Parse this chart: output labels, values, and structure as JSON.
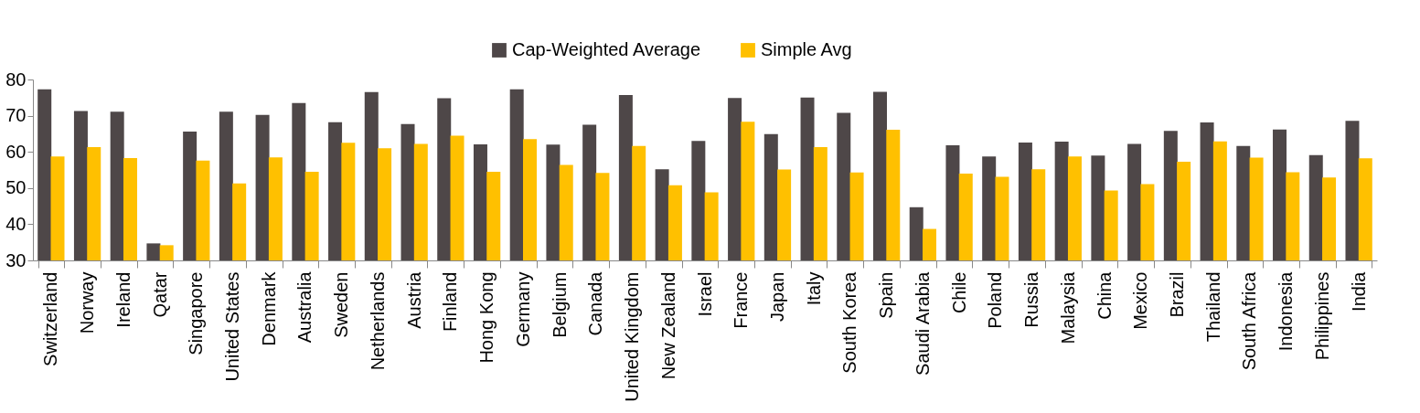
{
  "chart_data": {
    "type": "bar",
    "categories": [
      "Switzerland",
      "Norway",
      "Ireland",
      "Qatar",
      "Singapore",
      "United States",
      "Denmark",
      "Australia",
      "Sweden",
      "Netherlands",
      "Austria",
      "Finland",
      "Hong Kong",
      "Germany",
      "Belgium",
      "Canada",
      "United Kingdom",
      "New Zealand",
      "Israel",
      "France",
      "Japan",
      "Italy",
      "South Korea",
      "Spain",
      "Saudi Arabia",
      "Chile",
      "Poland",
      "Russia",
      "Malaysia",
      "China",
      "Mexico",
      "Brazil",
      "Thailand",
      "South Africa",
      "Indonesia",
      "Philippines",
      "India"
    ],
    "series": [
      {
        "name": "Cap-Weighted Average",
        "color": "#4e4748",
        "values": [
          77.3,
          71.3,
          71.1,
          34.7,
          65.6,
          71.1,
          70.2,
          73.5,
          68.2,
          76.5,
          67.7,
          74.8,
          62.1,
          77.3,
          62.0,
          67.5,
          75.7,
          55.2,
          63.0,
          74.9,
          64.9,
          75.0,
          70.8,
          76.6,
          44.7,
          61.8,
          58.7,
          62.6,
          62.8,
          59.0,
          62.2,
          65.8,
          68.1,
          61.6,
          66.2,
          59.1,
          68.6
        ]
      },
      {
        "name": "Simple Avg",
        "color": "#ffc000",
        "values": [
          58.7,
          61.3,
          58.3,
          34.2,
          57.6,
          51.3,
          58.5,
          54.5,
          62.5,
          61.0,
          62.2,
          64.5,
          54.5,
          63.5,
          56.4,
          54.2,
          61.6,
          50.8,
          48.8,
          68.3,
          55.1,
          61.3,
          54.3,
          66.1,
          38.7,
          54.0,
          53.1,
          55.2,
          58.7,
          49.3,
          51.1,
          57.3,
          62.9,
          58.4,
          54.4,
          52.9,
          58.2
        ]
      }
    ],
    "ylim": [
      30,
      80
    ],
    "yticks": [
      30,
      40,
      50,
      60,
      70,
      80
    ],
    "grid": false,
    "legend": "top"
  }
}
